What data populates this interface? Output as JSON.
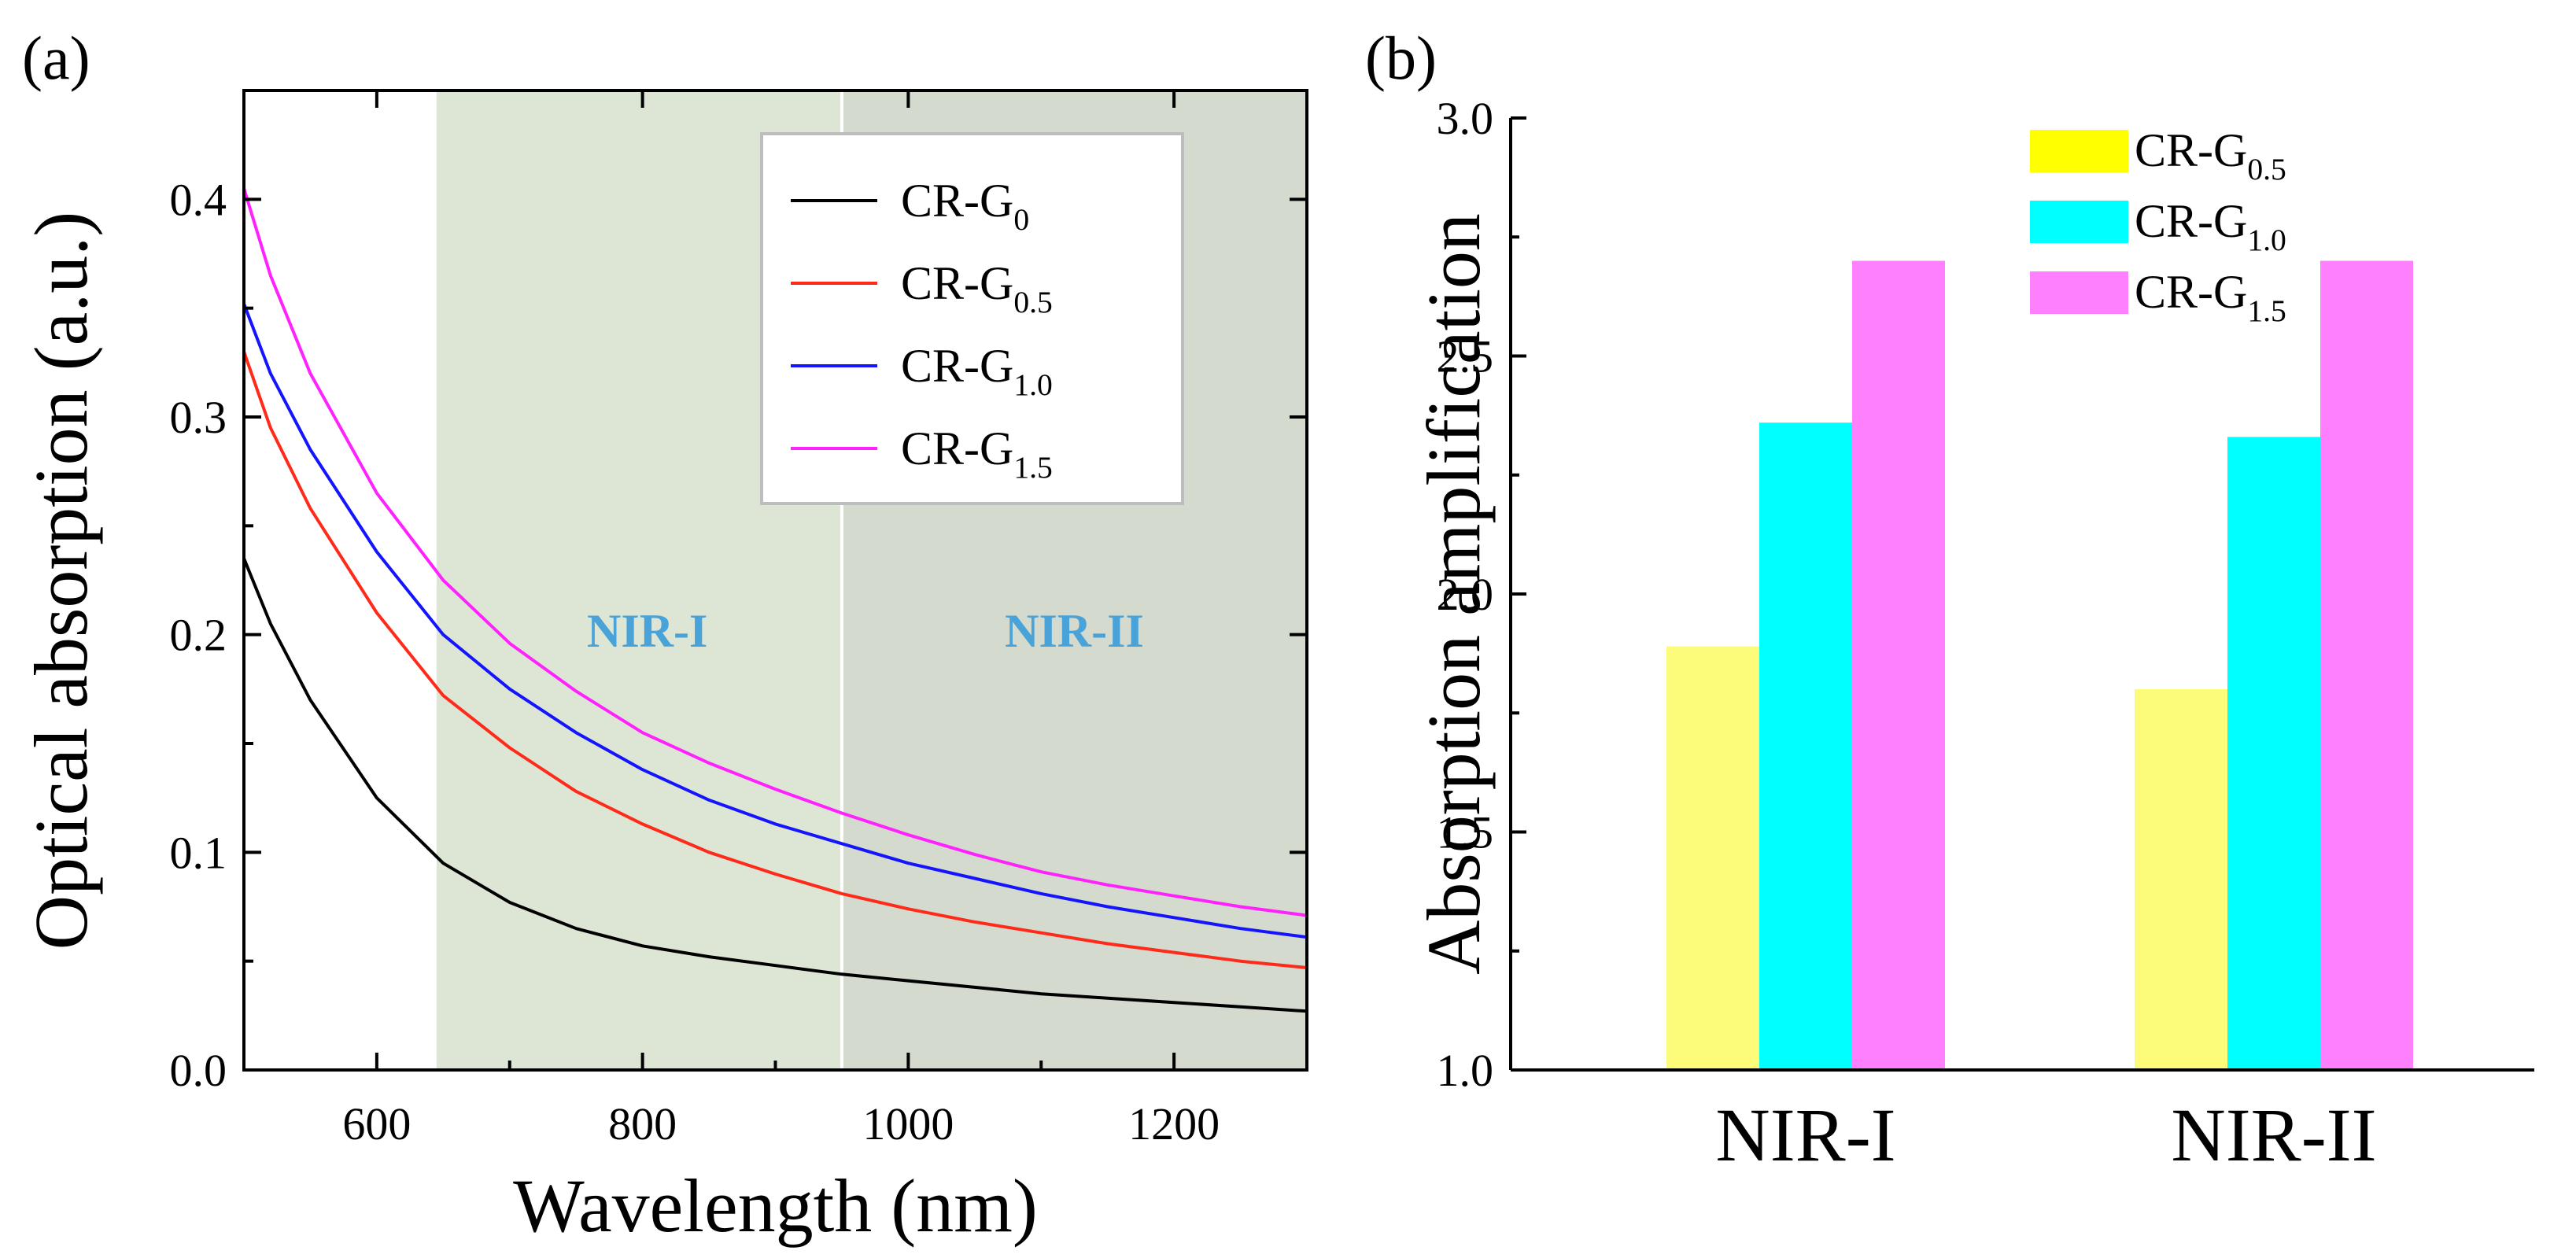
{
  "chart_data": [
    {
      "panel_label": "(a)",
      "type": "line",
      "xlabel": "Wavelength (nm)",
      "ylabel": "Optical absorption (a.u.)",
      "xlim": [
        500,
        1300
      ],
      "ylim": [
        0,
        0.45
      ],
      "xticks": [
        600,
        800,
        1000,
        1200
      ],
      "yticks": [
        0.0,
        0.1,
        0.2,
        0.3,
        0.4
      ],
      "ytick_labels": [
        "0.0",
        "0.1",
        "0.2",
        "0.3",
        "0.4"
      ],
      "regions": [
        {
          "label": "NIR-I",
          "x_start": 645,
          "x_end": 950,
          "color": "#dde6d5"
        },
        {
          "label": "NIR-II",
          "x_start": 950,
          "x_end": 1300,
          "color": "#d4dacd"
        }
      ],
      "region_label_color": "#4aa3d8",
      "legend_position": "top-right",
      "series": [
        {
          "name_base": "CR-G",
          "name_sub": "0",
          "color": "#000000",
          "x": [
            500,
            520,
            550,
            600,
            650,
            700,
            750,
            800,
            850,
            900,
            950,
            1000,
            1050,
            1100,
            1150,
            1200,
            1250,
            1300
          ],
          "y": [
            0.235,
            0.205,
            0.17,
            0.125,
            0.095,
            0.077,
            0.065,
            0.057,
            0.052,
            0.048,
            0.044,
            0.041,
            0.038,
            0.035,
            0.033,
            0.031,
            0.029,
            0.027
          ]
        },
        {
          "name_base": "CR-G",
          "name_sub": "0.5",
          "color": "#ff2a1a",
          "x": [
            500,
            520,
            550,
            600,
            650,
            700,
            750,
            800,
            850,
            900,
            950,
            1000,
            1050,
            1100,
            1150,
            1200,
            1250,
            1300
          ],
          "y": [
            0.33,
            0.295,
            0.258,
            0.21,
            0.172,
            0.148,
            0.128,
            0.113,
            0.1,
            0.09,
            0.081,
            0.074,
            0.068,
            0.063,
            0.058,
            0.054,
            0.05,
            0.047
          ]
        },
        {
          "name_base": "CR-G",
          "name_sub": "1.0",
          "color": "#1414ff",
          "x": [
            500,
            520,
            550,
            600,
            650,
            700,
            750,
            800,
            850,
            900,
            950,
            1000,
            1050,
            1100,
            1150,
            1200,
            1250,
            1300
          ],
          "y": [
            0.352,
            0.32,
            0.285,
            0.238,
            0.2,
            0.175,
            0.155,
            0.138,
            0.124,
            0.113,
            0.104,
            0.095,
            0.088,
            0.081,
            0.075,
            0.07,
            0.065,
            0.061
          ]
        },
        {
          "name_base": "CR-G",
          "name_sub": "1.5",
          "color": "#ff22ff",
          "x": [
            500,
            520,
            550,
            600,
            650,
            700,
            750,
            800,
            850,
            900,
            950,
            1000,
            1050,
            1100,
            1150,
            1200,
            1250,
            1300
          ],
          "y": [
            0.405,
            0.365,
            0.32,
            0.265,
            0.225,
            0.196,
            0.174,
            0.155,
            0.141,
            0.129,
            0.118,
            0.108,
            0.099,
            0.091,
            0.085,
            0.08,
            0.075,
            0.071
          ]
        }
      ]
    },
    {
      "panel_label": "(b)",
      "type": "bar",
      "ylabel": "Absorption amplification",
      "ylim": [
        1.0,
        3.0
      ],
      "yticks": [
        1.0,
        1.5,
        2.0,
        2.5,
        3.0
      ],
      "ytick_labels": [
        "1.0",
        "1.5",
        "2.0",
        "2.5",
        "3.0"
      ],
      "categories": [
        "NIR-I",
        "NIR-II"
      ],
      "legend_position": "top-right",
      "series": [
        {
          "name_base": "CR-G",
          "name_sub": "0.5",
          "color": "#fdfc7a",
          "legend_color": "#ffff00",
          "values": [
            1.89,
            1.8
          ]
        },
        {
          "name_base": "CR-G",
          "name_sub": "1.0",
          "color": "#00ffff",
          "legend_color": "#00ffff",
          "values": [
            2.36,
            2.33
          ]
        },
        {
          "name_base": "CR-G",
          "name_sub": "1.5",
          "color": "#ff80ff",
          "legend_color": "#ff80ff",
          "values": [
            2.7,
            2.7
          ]
        }
      ]
    }
  ]
}
